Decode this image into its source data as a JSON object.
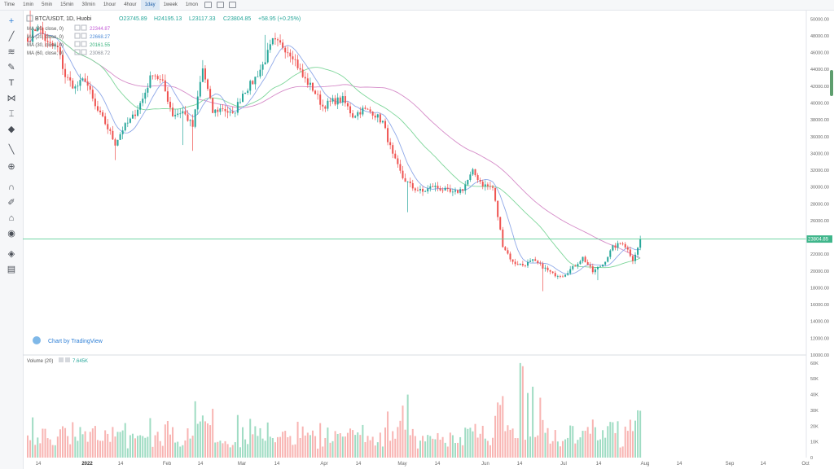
{
  "toolbar": {
    "timeframes": [
      "Time",
      "1min",
      "5min",
      "15min",
      "30min",
      "1hour",
      "4hour",
      "1day",
      "1week",
      "1mon"
    ],
    "active": "1day"
  },
  "legend": {
    "symbol": "BTC/USDT, 1D, Huobi",
    "open": "O23745.89",
    "high": "H24195.13",
    "low": "L23117.33",
    "close": "C23804.85",
    "change": "+58.95 (+0.25%)",
    "ma_rows": [
      {
        "label": "MA (30, close, 0)",
        "value": "22344.87",
        "color": "#c25ad6"
      },
      {
        "label": "MA (20, close, 0)",
        "value": "22668.27",
        "color": "#4d8bd8"
      },
      {
        "label": "MA (30, close, 0)",
        "value": "20161.55",
        "color": "#33b07a"
      },
      {
        "label": "MA (60, close, 0)",
        "value": "23068.72",
        "color": "#8a8f98"
      }
    ]
  },
  "last_price_label": "23804.85",
  "branding": "Chart by TradingView",
  "volume": {
    "label": "Volume (20)",
    "value": "7.645K"
  },
  "colors": {
    "up": "#26a69a",
    "down": "#ef5350",
    "ma_pink": "#d58bc8",
    "ma_green": "#7ed69a",
    "ma_blue": "#8fa8e8",
    "price_line": "#5fcf9a"
  },
  "chart_data": {
    "type": "candlestick",
    "title": "BTC/USDT, 1D, Huobi",
    "price_axis": {
      "range": [
        10000,
        51000
      ],
      "ticks": [
        "50000.00",
        "48000.00",
        "46000.00",
        "44000.00",
        "42000.00",
        "40000.00",
        "38000.00",
        "36000.00",
        "34000.00",
        "32000.00",
        "30000.00",
        "28000.00",
        "26000.00",
        "24000.00",
        "22000.00",
        "20000.00",
        "18000.00",
        "16000.00",
        "14000.00",
        "12000.00",
        "10000.00"
      ]
    },
    "volume_axis": {
      "range": [
        0,
        62000
      ],
      "ticks": [
        "60K",
        "50K",
        "40K",
        "30K",
        "20K",
        "10K",
        "0"
      ]
    },
    "x_axis": {
      "ticks": [
        "14",
        "2022",
        "14",
        "Feb",
        "14",
        "Mar",
        "14",
        "Apr",
        "14",
        "May",
        "14",
        "Jun",
        "14",
        "Jul",
        "14",
        "Aug",
        "14",
        "Sep",
        "14",
        "Oct"
      ]
    },
    "close_anchors": [
      [
        0,
        47300
      ],
      [
        4,
        49300
      ],
      [
        8,
        47000
      ],
      [
        12,
        46500
      ],
      [
        15,
        43200
      ],
      [
        19,
        41800
      ],
      [
        23,
        42900
      ],
      [
        27,
        39500
      ],
      [
        31,
        37600
      ],
      [
        35,
        35200
      ],
      [
        38,
        36900
      ],
      [
        42,
        38300
      ],
      [
        46,
        40500
      ],
      [
        50,
        43700
      ],
      [
        54,
        42300
      ],
      [
        58,
        38600
      ],
      [
        62,
        39000
      ],
      [
        66,
        37200
      ],
      [
        70,
        44100
      ],
      [
        74,
        38900
      ],
      [
        78,
        39400
      ],
      [
        82,
        38500
      ],
      [
        86,
        41200
      ],
      [
        90,
        42500
      ],
      [
        94,
        44500
      ],
      [
        98,
        47300
      ],
      [
        102,
        46800
      ],
      [
        106,
        45700
      ],
      [
        110,
        43100
      ],
      [
        114,
        41700
      ],
      [
        118,
        39600
      ],
      [
        122,
        40200
      ],
      [
        126,
        40400
      ],
      [
        130,
        38500
      ],
      [
        134,
        39200
      ],
      [
        138,
        38900
      ],
      [
        142,
        37700
      ],
      [
        146,
        33700
      ],
      [
        150,
        31100
      ],
      [
        154,
        29900
      ],
      [
        158,
        29400
      ],
      [
        162,
        30100
      ],
      [
        166,
        29700
      ],
      [
        170,
        29200
      ],
      [
        174,
        29800
      ],
      [
        178,
        31800
      ],
      [
        182,
        30300
      ],
      [
        186,
        29900
      ],
      [
        190,
        23100
      ],
      [
        194,
        21000
      ],
      [
        198,
        20700
      ],
      [
        202,
        21200
      ],
      [
        206,
        20500
      ],
      [
        210,
        19600
      ],
      [
        214,
        19500
      ],
      [
        218,
        20400
      ],
      [
        222,
        21600
      ],
      [
        226,
        19900
      ],
      [
        230,
        20800
      ],
      [
        234,
        22800
      ],
      [
        238,
        23400
      ],
      [
        240,
        22500
      ],
      [
        242,
        21400
      ],
      [
        244,
        22700
      ],
      [
        245,
        23800
      ]
    ],
    "high_spikes": [
      [
        1,
        51000
      ],
      [
        70,
        45100
      ],
      [
        95,
        48100
      ],
      [
        150,
        32500
      ]
    ],
    "low_spikes": [
      [
        35,
        33200
      ],
      [
        62,
        35000
      ],
      [
        66,
        34300
      ],
      [
        152,
        27000
      ],
      [
        206,
        17600
      ],
      [
        228,
        18900
      ]
    ]
  }
}
